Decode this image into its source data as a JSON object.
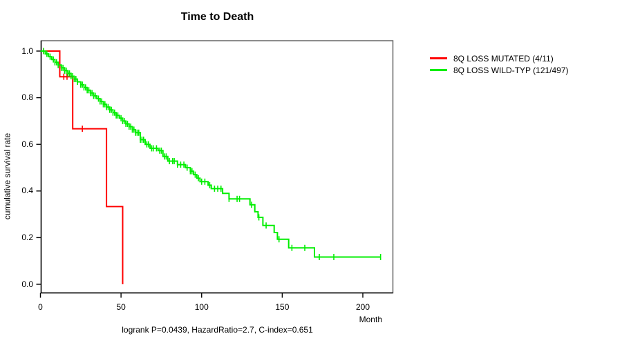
{
  "chart_data": {
    "type": "line",
    "variant": "kaplan_meier_step_survival",
    "title": "Time to Death",
    "subtitle": "logrank P=0.0439, HazardRatio=2.7, C-index=0.651",
    "xlabel": "Month",
    "ylabel": "cumulative survival rate",
    "xlim": [
      0,
      219
    ],
    "ylim": [
      0.0,
      1.0
    ],
    "x_ticks": [
      0,
      50,
      100,
      150,
      200
    ],
    "y_ticks": [
      0.0,
      0.2,
      0.4,
      0.6,
      0.8,
      1.0
    ],
    "grid": false,
    "legend_position": "outside-right-top",
    "series": [
      {
        "name": "8Q LOSS MUTATED (4/11)",
        "color": "#ff0000",
        "events_total": "4/11",
        "steps": [
          [
            0,
            1.0
          ],
          [
            12,
            0.89
          ],
          [
            20,
            0.667
          ],
          [
            41,
            0.333
          ],
          [
            51,
            0.0
          ]
        ],
        "censor_months": [
          2,
          14.5,
          16.5,
          26
        ]
      },
      {
        "name": "8Q LOSS WILD-TYP (121/497)",
        "color": "#00ee00",
        "events_total": "121/497",
        "steps": [
          [
            0,
            1.0
          ],
          [
            3,
            0.988
          ],
          [
            5,
            0.976
          ],
          [
            7,
            0.964
          ],
          [
            9,
            0.952
          ],
          [
            11,
            0.94
          ],
          [
            13,
            0.928
          ],
          [
            15,
            0.916
          ],
          [
            17,
            0.904
          ],
          [
            19,
            0.892
          ],
          [
            21,
            0.88
          ],
          [
            23,
            0.868
          ],
          [
            25,
            0.856
          ],
          [
            27,
            0.844
          ],
          [
            29,
            0.832
          ],
          [
            31,
            0.82
          ],
          [
            33,
            0.808
          ],
          [
            35,
            0.796
          ],
          [
            37,
            0.784
          ],
          [
            39,
            0.772
          ],
          [
            41,
            0.76
          ],
          [
            43,
            0.748
          ],
          [
            45,
            0.736
          ],
          [
            47,
            0.724
          ],
          [
            49,
            0.712
          ],
          [
            51,
            0.7
          ],
          [
            53,
            0.688
          ],
          [
            55,
            0.676
          ],
          [
            57,
            0.663
          ],
          [
            59,
            0.65
          ],
          [
            62,
            0.62
          ],
          [
            65,
            0.6
          ],
          [
            68,
            0.583
          ],
          [
            73,
            0.573
          ],
          [
            76,
            0.548
          ],
          [
            79,
            0.528
          ],
          [
            85,
            0.513
          ],
          [
            90,
            0.5
          ],
          [
            93,
            0.485
          ],
          [
            95,
            0.47
          ],
          [
            97,
            0.455
          ],
          [
            99,
            0.44
          ],
          [
            104,
            0.425
          ],
          [
            106,
            0.41
          ],
          [
            113,
            0.39
          ],
          [
            117,
            0.366
          ],
          [
            130,
            0.341
          ],
          [
            133,
            0.311
          ],
          [
            135,
            0.287
          ],
          [
            138,
            0.252
          ],
          [
            145,
            0.222
          ],
          [
            147,
            0.193
          ],
          [
            154,
            0.156
          ],
          [
            170,
            0.117
          ],
          [
            211,
            0.117
          ]
        ],
        "censor_months": [
          2,
          4,
          6,
          8,
          9,
          10,
          11,
          13,
          14,
          15,
          16,
          17,
          18,
          19,
          20,
          21,
          22,
          23,
          25,
          26,
          27,
          28,
          29,
          30,
          31,
          32,
          33,
          34,
          36,
          37,
          38,
          39,
          40,
          41,
          42,
          43,
          44,
          45,
          46,
          47,
          48,
          50,
          51,
          52,
          53,
          54,
          55,
          56,
          57,
          58,
          59,
          60,
          61,
          62,
          63,
          64,
          66,
          67,
          69,
          70,
          72,
          74,
          75,
          77,
          78,
          80,
          82,
          83,
          85,
          87,
          89,
          91,
          93,
          94,
          96,
          98,
          100,
          102,
          105,
          108,
          110,
          112,
          117,
          122,
          123.5,
          131,
          135.5,
          140,
          148,
          156,
          164,
          173,
          182,
          211
        ]
      }
    ],
    "axis_colors": {
      "box": "#666666",
      "axis": "#000000"
    }
  }
}
